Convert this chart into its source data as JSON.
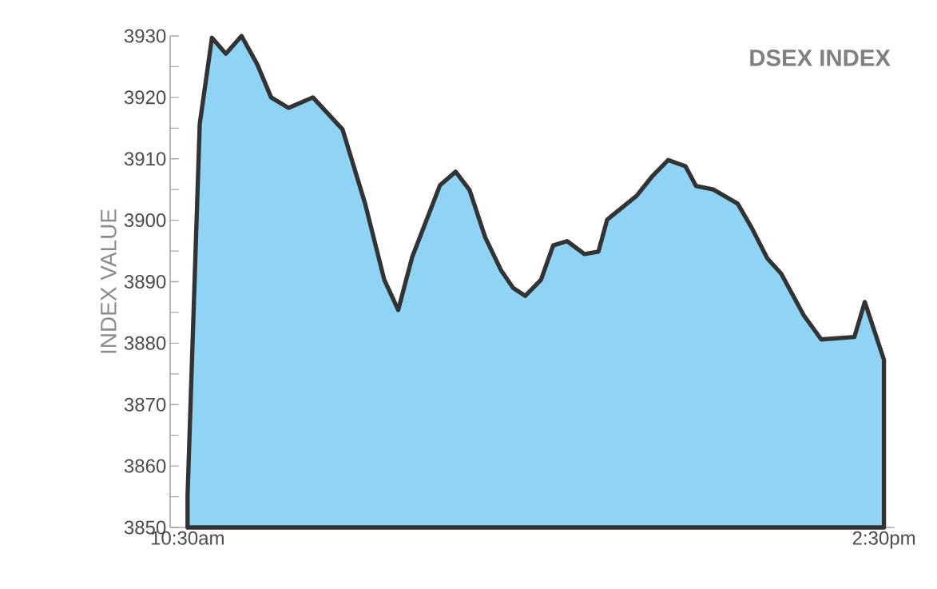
{
  "chart_data": {
    "type": "area",
    "title": "DSEX INDEX",
    "ylabel": "INDEX VALUE",
    "x": [
      10.5,
      10.57,
      10.64,
      10.72,
      10.81,
      10.9,
      10.98,
      11.08,
      11.22,
      11.39,
      11.52,
      11.63,
      11.71,
      11.79,
      11.95,
      12.04,
      12.12,
      12.21,
      12.3,
      12.37,
      12.44,
      12.53,
      12.6,
      12.68,
      12.78,
      12.86,
      12.91,
      13.08,
      13.17,
      13.26,
      13.36,
      13.42,
      13.52,
      13.66,
      13.74,
      13.83,
      13.91,
      14.04,
      14.14,
      14.33,
      14.39,
      14.5
    ],
    "values": [
      3855.2,
      3915.7,
      3929.7,
      3927.1,
      3930,
      3925.4,
      3920,
      3918.3,
      3920,
      3914.8,
      3902.7,
      3890.3,
      3885.4,
      3894,
      3905.7,
      3907.9,
      3904.9,
      3897.2,
      3891.9,
      3889,
      3887.7,
      3890.3,
      3895.9,
      3896.6,
      3894.5,
      3894.9,
      3900.1,
      3904,
      3907.2,
      3909.8,
      3908.8,
      3905.6,
      3905,
      3902.7,
      3898.8,
      3893.8,
      3891.3,
      3884.5,
      3880.6,
      3881,
      3886.7,
      3877.3
    ],
    "color": "#8fd3f5",
    "xlim": [
      10.4,
      14.56
    ],
    "ylim": [
      3850,
      3930
    ],
    "xticks": [
      {
        "value": 10.5,
        "label": "10:30am"
      },
      {
        "value": 14.5,
        "label": "2:30pm"
      }
    ],
    "yticks": [
      3850,
      {
        "value": 3855,
        "label": null
      },
      3860,
      {
        "value": 3865,
        "label": null
      },
      3870,
      {
        "value": 3875,
        "label": null
      },
      3880,
      {
        "value": 3885,
        "label": null
      },
      3890,
      {
        "value": 3895,
        "label": null
      },
      3900,
      {
        "value": 3905,
        "label": null
      },
      3910,
      {
        "value": 3915,
        "label": null
      },
      3920,
      {
        "value": 3925,
        "label": null
      },
      3930
    ],
    "grid": false,
    "marker": "none",
    "line_style": "solid"
  }
}
